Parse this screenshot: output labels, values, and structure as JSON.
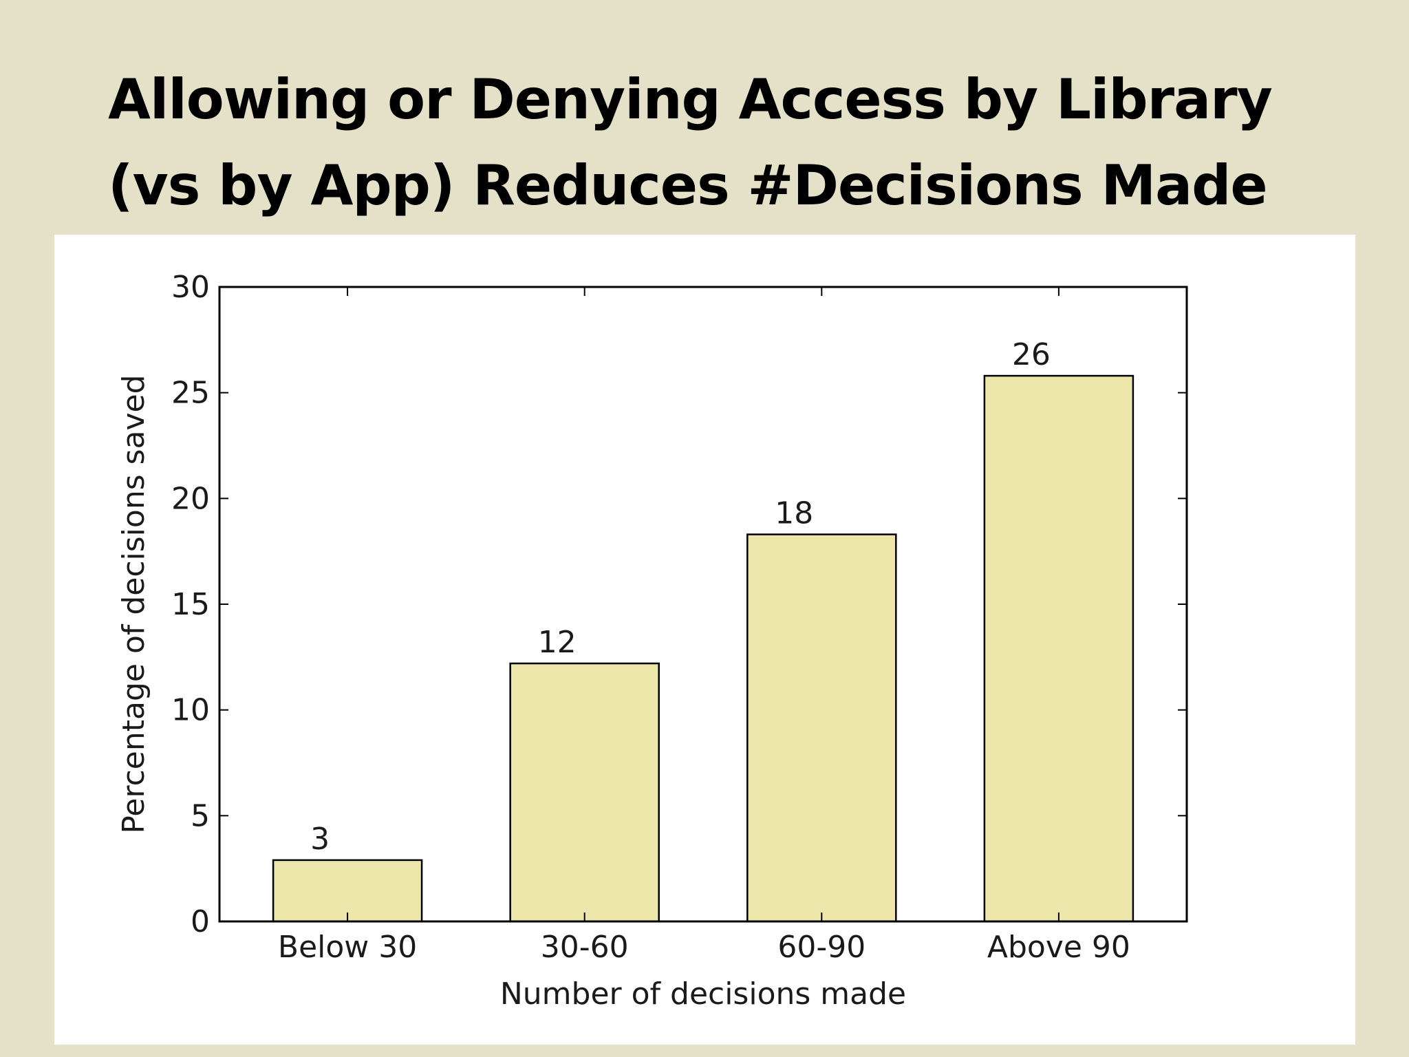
{
  "slide": {
    "title_line1": "Allowing or Denying Access by Library",
    "title_line2": "(vs by App) Reduces #Decisions Made"
  },
  "colors": {
    "background": "#e5e0c8",
    "panel": "#ffffff",
    "bar_fill": "#ede6ab",
    "bar_stroke": "#000000"
  },
  "chart_data": {
    "type": "bar",
    "title": "",
    "categories": [
      "Below 30",
      "30-60",
      "60-90",
      "Above 90"
    ],
    "values": [
      2.9,
      12.2,
      18.3,
      25.8
    ],
    "value_labels": [
      "3",
      "12",
      "18",
      "26"
    ],
    "xlabel": "Number of decisions made",
    "ylabel": "Percentage of decisions saved",
    "ylim": [
      0,
      30
    ],
    "yticks": [
      0,
      5,
      10,
      15,
      20,
      25,
      30
    ],
    "grid": false,
    "legend": "none"
  }
}
